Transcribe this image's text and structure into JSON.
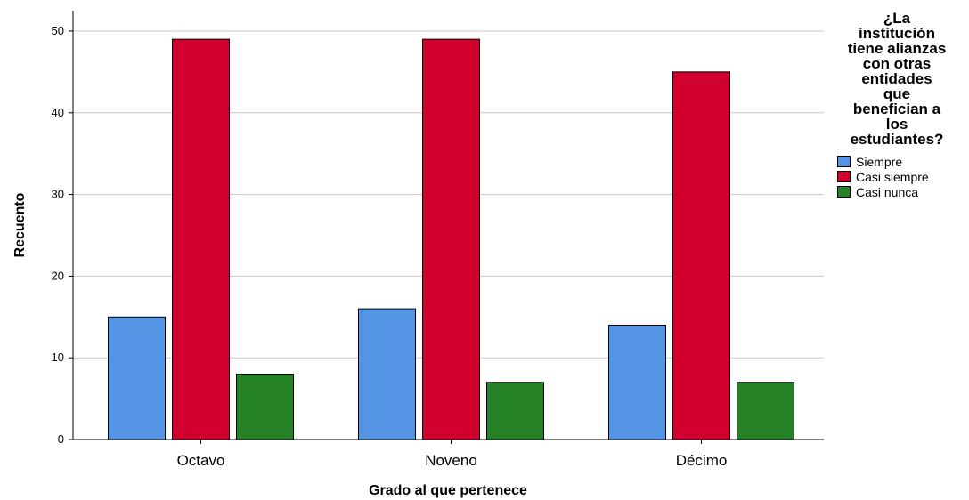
{
  "chart_data": {
    "type": "bar",
    "categories": [
      "Octavo",
      "Noveno",
      "Décimo"
    ],
    "series": [
      {
        "name": "Siempre",
        "color": "#5595e5",
        "values": [
          15,
          16,
          14
        ]
      },
      {
        "name": "Casi siempre",
        "color": "#d1002f",
        "values": [
          49,
          49,
          45
        ]
      },
      {
        "name": "Casi nunca",
        "color": "#248126",
        "values": [
          8,
          7,
          7
        ]
      }
    ],
    "xlabel": "Grado al que pertenece",
    "ylabel": "Recuento",
    "ylim": [
      0,
      52.5
    ],
    "yticks": [
      "0",
      "10",
      "20",
      "30",
      "40",
      "50"
    ],
    "grid": true,
    "legend_title_lines": [
      "¿La",
      "institución",
      "tiene alianzas",
      "con otras",
      "entidades",
      "que",
      "benefician a",
      "los",
      "estudiantes?"
    ],
    "legend_position": "right"
  }
}
